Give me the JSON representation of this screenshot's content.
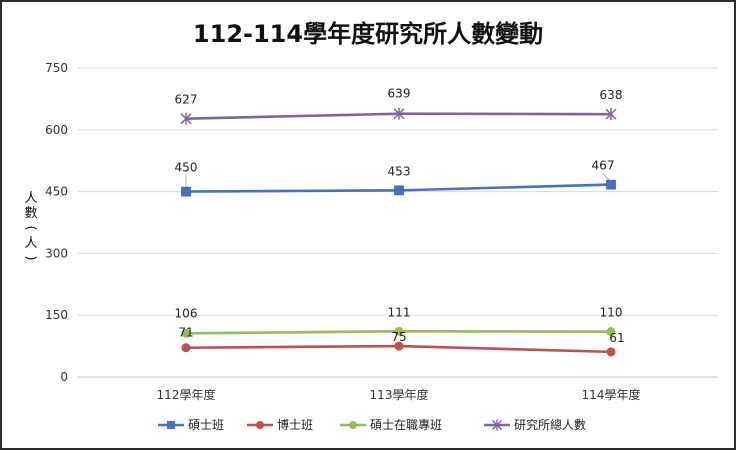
{
  "chart_data": {
    "type": "line",
    "title": "112-114學年度研究所人數變動",
    "xlabel": "",
    "ylabel": "人數(人)",
    "categories": [
      "112學年度",
      "113學年度",
      "114學年度"
    ],
    "ylim": [
      0,
      750
    ],
    "yticks": [
      0,
      150,
      300,
      450,
      600,
      750
    ],
    "grid": true,
    "legend_position": "bottom",
    "series": [
      {
        "name": "碩士班",
        "values": [
          450,
          453,
          467
        ],
        "color": "#4472C4",
        "marker": "square"
      },
      {
        "name": "博士班",
        "values": [
          71,
          75,
          61
        ],
        "color": "#C0504D",
        "marker": "circle"
      },
      {
        "name": "碩士在職專班",
        "values": [
          106,
          111,
          110
        ],
        "color": "#9BBB59",
        "marker": "circle"
      },
      {
        "name": "研究所總人數",
        "values": [
          627,
          639,
          638
        ],
        "color": "#8064A2",
        "marker": "star"
      }
    ]
  }
}
